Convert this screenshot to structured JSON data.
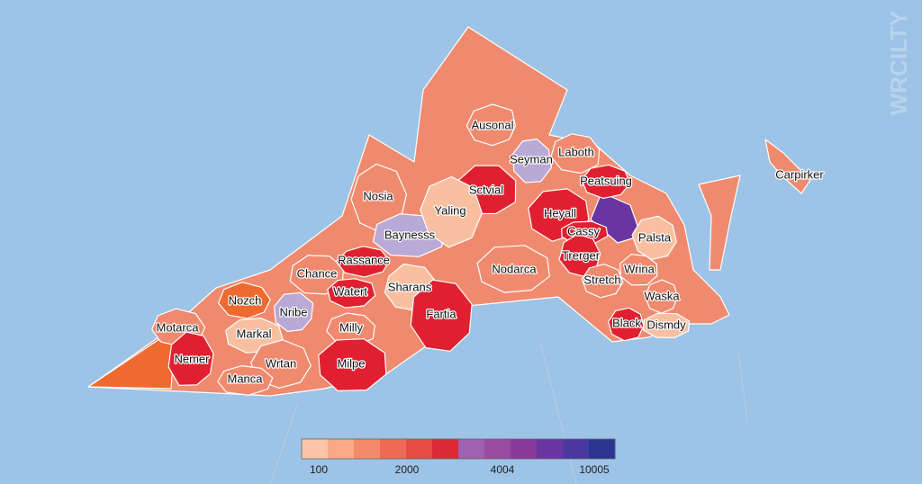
{
  "watermark": "WRCILTY",
  "regions": [
    {
      "label": "Ausonal",
      "color": "#f08a6e"
    },
    {
      "label": "Seyman",
      "color": "#b9a9d6"
    },
    {
      "label": "Laboth",
      "color": "#f08a6e"
    },
    {
      "label": "Peatsuing",
      "color": "#e02030"
    },
    {
      "label": "Sctvial",
      "color": "#e02030"
    },
    {
      "label": "Nosia",
      "color": "#f08a6e"
    },
    {
      "label": "Heyall",
      "color": "#e02030"
    },
    {
      "label": "Baynesss",
      "color": "#b9a9d6"
    },
    {
      "label": "Yaling",
      "color": "#f8c0a0"
    },
    {
      "label": "Cassy",
      "color": "#e02030"
    },
    {
      "label": "Trerger",
      "color": "#e02030"
    },
    {
      "label": "Palsta",
      "color": "#f8c0a0"
    },
    {
      "label": "Chance",
      "color": "#f08a6e"
    },
    {
      "label": "Rassance",
      "color": "#e02030"
    },
    {
      "label": "Nodarca",
      "color": "#f08a6e"
    },
    {
      "label": "Sharans",
      "color": "#f8c0a0"
    },
    {
      "label": "Stretch",
      "color": "#f08a6e"
    },
    {
      "label": "Wrina",
      "color": "#f08a6e"
    },
    {
      "label": "Nozch",
      "color": "#ee6a30"
    },
    {
      "label": "Watert",
      "color": "#e02030"
    },
    {
      "label": "Fartia",
      "color": "#e02030"
    },
    {
      "label": "Waska",
      "color": "#f08a6e"
    },
    {
      "label": "Nribe",
      "color": "#b9a9d6"
    },
    {
      "label": "Milly",
      "color": "#f08a6e"
    },
    {
      "label": "Black",
      "color": "#e02030"
    },
    {
      "label": "Dismdy",
      "color": "#f8c0a0"
    },
    {
      "label": "Motarca",
      "color": "#f08a6e"
    },
    {
      "label": "Markal",
      "color": "#f8c0a0"
    },
    {
      "label": "Nemer",
      "color": "#e02030"
    },
    {
      "label": "Wrtan",
      "color": "#f08a6e"
    },
    {
      "label": "Milpe",
      "color": "#e02030"
    },
    {
      "label": "Manca",
      "color": "#f08a6e"
    },
    {
      "label": "Carpirker",
      "color": "#f08a6e"
    }
  ],
  "legend": {
    "colors": [
      "#fcc5a8",
      "#f9a985",
      "#f4896b",
      "#ef6a55",
      "#e84a45",
      "#dc2a35",
      "#a060b0",
      "#9a4aa0",
      "#8a3a9a",
      "#6a35a0",
      "#4a38a0",
      "#2a3590"
    ],
    "ticks": [
      100,
      2000,
      4004,
      10005
    ]
  }
}
